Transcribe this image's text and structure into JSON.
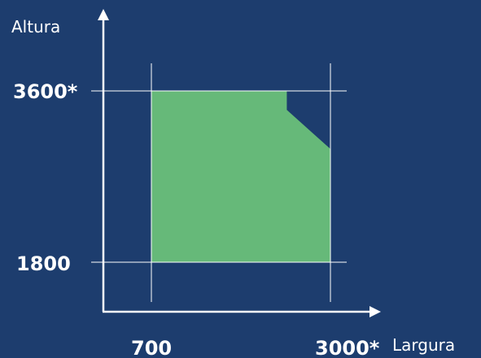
{
  "labels": {
    "y_axis_title": "Altura",
    "x_axis_title": "Largura",
    "y_max": "3600*",
    "y_min": "1800",
    "x_min": "700",
    "x_max": "3000*"
  },
  "chart_data": {
    "type": "area",
    "xlabel": "Largura",
    "ylabel": "Altura",
    "x_ticks": [
      700,
      3000
    ],
    "y_ticks": [
      1800,
      3600
    ],
    "region": [
      {
        "x": 700,
        "y": 1800
      },
      {
        "x": 3000,
        "y": 1800
      },
      {
        "x": 3000,
        "y": 2990
      },
      {
        "x": 2440,
        "y": 3400
      },
      {
        "x": 2440,
        "y": 3600
      },
      {
        "x": 700,
        "y": 3600
      }
    ],
    "colors": {
      "background": "#1d3d6e",
      "region_fill": "#66b979",
      "lines": "#ffffff"
    }
  }
}
